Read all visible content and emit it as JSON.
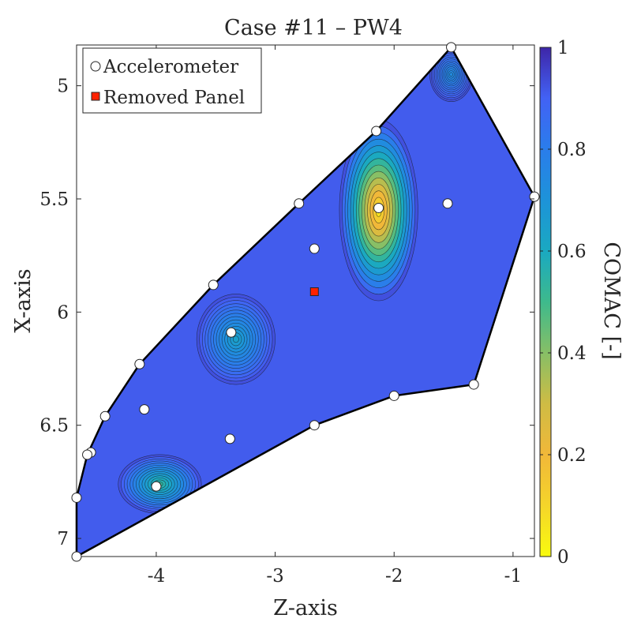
{
  "chart_data": {
    "type": "contour",
    "title": "Case #11 – PW4",
    "xlabel": "Z-axis",
    "ylabel": "X-axis",
    "xlim": [
      -4.67,
      -0.82
    ],
    "ylim": [
      4.82,
      7.08
    ],
    "y_reversed": true,
    "x_ticks": [
      -4,
      -3,
      -2,
      -1
    ],
    "y_ticks": [
      5,
      5.5,
      6,
      6.5,
      7
    ],
    "colorbar": {
      "label": "COMAC [-]",
      "range": [
        0,
        1
      ],
      "ticks": [
        0,
        0.2,
        0.4,
        0.6,
        0.8,
        1
      ],
      "colormap": "parula"
    },
    "legend": {
      "placement": "top-left",
      "entries": [
        "Accelerometer",
        "Removed Panel"
      ]
    },
    "colors": {
      "accelerometer": "#ffffff",
      "removed_panel": "#ff2200",
      "outline": "#000000"
    },
    "boundary": [
      [
        -4.67,
        7.08
      ],
      [
        -4.67,
        6.82
      ],
      [
        -4.58,
        6.63
      ],
      [
        -4.43,
        6.46
      ],
      [
        -4.14,
        6.23
      ],
      [
        -3.52,
        5.88
      ],
      [
        -2.8,
        5.52
      ],
      [
        -2.15,
        5.2
      ],
      [
        -1.52,
        4.83
      ],
      [
        -0.82,
        5.49
      ],
      [
        -1.33,
        6.32
      ],
      [
        -2.0,
        6.37
      ],
      [
        -2.67,
        6.5
      ]
    ],
    "accelerometers": [
      [
        -1.52,
        4.83
      ],
      [
        -2.15,
        5.2
      ],
      [
        -2.8,
        5.52
      ],
      [
        -2.13,
        5.54
      ],
      [
        -1.55,
        5.52
      ],
      [
        -0.82,
        5.49
      ],
      [
        -2.67,
        5.72
      ],
      [
        -3.52,
        5.88
      ],
      [
        -3.37,
        6.09
      ],
      [
        -4.14,
        6.23
      ],
      [
        -4.1,
        6.43
      ],
      [
        -4.43,
        6.46
      ],
      [
        -3.38,
        6.56
      ],
      [
        -2.67,
        6.5
      ],
      [
        -2.0,
        6.37
      ],
      [
        -1.33,
        6.32
      ],
      [
        -4.55,
        6.62
      ],
      [
        -4.58,
        6.63
      ],
      [
        -4.0,
        6.77
      ],
      [
        -4.67,
        6.82
      ],
      [
        -4.67,
        7.08
      ]
    ],
    "removed_panel": [
      [
        -2.67,
        5.91
      ]
    ],
    "field_features": [
      {
        "x": -2.13,
        "y": 5.55,
        "value": 0.0,
        "sx": 0.33,
        "sy": 0.4
      },
      {
        "x": -3.33,
        "y": 6.12,
        "value": 0.62,
        "sx": 0.33,
        "sy": 0.2
      },
      {
        "x": -3.97,
        "y": 6.76,
        "value": 0.5,
        "sx": 0.35,
        "sy": 0.13
      },
      {
        "x": -1.52,
        "y": 4.95,
        "value": 0.72,
        "sx": 0.18,
        "sy": 0.12
      }
    ],
    "field_base": 0.93
  }
}
